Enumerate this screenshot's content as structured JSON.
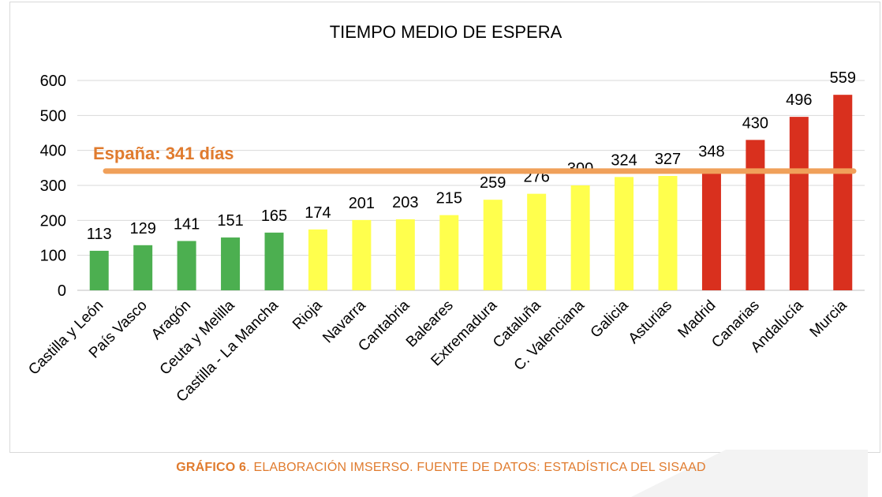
{
  "chart_data": {
    "type": "bar",
    "title": "TIEMPO MEDIO DE ESPERA",
    "categories": [
      "Castilla y León",
      "País Vasco",
      "Aragón",
      "Ceuta y Melilla",
      "Castilla - La Mancha",
      "Rioja",
      "Navarra",
      "Cantabria",
      "Baleares",
      "Extremadura",
      "Cataluña",
      "C. Valenciana",
      "Galicia",
      "Asturias",
      "Madrid",
      "Canarias",
      "Andalucía",
      "Murcia"
    ],
    "values": [
      113,
      129,
      141,
      151,
      165,
      174,
      201,
      203,
      215,
      259,
      276,
      300,
      324,
      327,
      348,
      430,
      496,
      559
    ],
    "bar_colors": [
      "#4caf50",
      "#4caf50",
      "#4caf50",
      "#4caf50",
      "#4caf50",
      "#ffff4d",
      "#ffff4d",
      "#ffff4d",
      "#ffff4d",
      "#ffff4d",
      "#ffff4d",
      "#ffff4d",
      "#ffff4d",
      "#ffff4d",
      "#d9301e",
      "#d9301e",
      "#d9301e",
      "#d9301e"
    ],
    "ylim": [
      0,
      600
    ],
    "yticks": [
      0,
      100,
      200,
      300,
      400,
      500,
      600
    ],
    "reference_line": {
      "value": 341,
      "label": "España: 341 días",
      "color": "#f0a05a"
    },
    "label_color": "#e07b2e",
    "xlabel": "",
    "ylabel": ""
  },
  "caption": {
    "bold": "GRÁFICO 6",
    "rest": ". ELABORACIÓN IMSERSO. FUENTE DE DATOS: ESTADÍSTICA DEL SISAAD"
  }
}
